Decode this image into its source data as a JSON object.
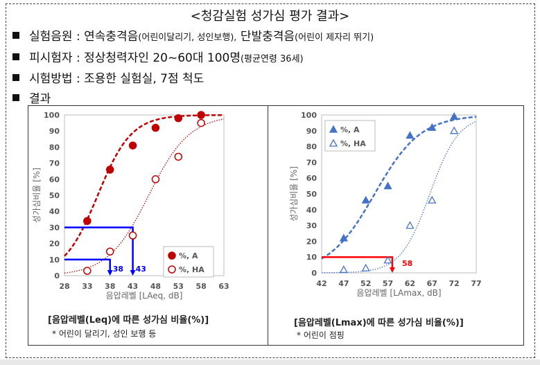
{
  "title": "<청감실험 성가심 평가 결과>",
  "lines": [
    {
      "main": "실험음원 : 연속충격음",
      "small": "(어린이달리기, 성인보행),",
      "main2": " 단발충격음",
      "small2": "(어린이 제자리 뛰기)"
    },
    {
      "main": "피시험자 : 정상청력자인 20~60대 100명",
      "small": "(평균연령 36세)"
    },
    {
      "main": "시험방법 : 조용한 실험실, 7점 척도"
    },
    {
      "main": "결과"
    }
  ],
  "chart_data": [
    {
      "type": "scatter",
      "xlabel": "음압레벨 [LAeq, dB]",
      "ylabel": "성가심비율 [%]",
      "xlim": [
        28,
        63
      ],
      "ylim": [
        0,
        100
      ],
      "xticks": [
        "28",
        "33",
        "38",
        "43",
        "48",
        "53",
        "58",
        "63"
      ],
      "yticks": [
        "0",
        "10",
        "20",
        "30",
        "40",
        "50",
        "60",
        "70",
        "80",
        "90",
        "100"
      ],
      "legend": "bottom-right",
      "color": "#c00000",
      "series": [
        {
          "name": "%, A",
          "marker": "filled-circle",
          "x": [
            33,
            38,
            43,
            48,
            53,
            58
          ],
          "y": [
            34,
            66,
            81,
            92,
            98,
            100
          ],
          "fit": {
            "x0": 35.3,
            "s": 3.7
          }
        },
        {
          "name": "%, HA",
          "marker": "open-circle",
          "x": [
            33,
            38,
            43,
            48,
            53,
            58
          ],
          "y": [
            3,
            15,
            25,
            60,
            74,
            95
          ],
          "fit": {
            "x0": 46.5,
            "s": 4.5
          }
        }
      ],
      "annotations": [
        {
          "y": 10,
          "x": 38,
          "label": "38",
          "color": "#0000ff"
        },
        {
          "y": 30,
          "x": 43,
          "label": "43",
          "color": "#0000ff"
        }
      ],
      "caption": "[음압레벨(Leq)에 따른 성가심 비율(%)]",
      "note": "* 어린이 달리기, 성인 보행 등"
    },
    {
      "type": "scatter",
      "xlabel": "음압레벨 [LAmax, dB]",
      "ylabel": "성가심비율 [%]",
      "xlim": [
        42,
        77
      ],
      "ylim": [
        0,
        100
      ],
      "xticks": [
        "42",
        "47",
        "52",
        "57",
        "62",
        "67",
        "72",
        "77"
      ],
      "yticks": [
        "0",
        "10",
        "20",
        "30",
        "40",
        "50",
        "60",
        "70",
        "80",
        "90",
        "100"
      ],
      "legend": "top-left",
      "color": "#4472c4",
      "series": [
        {
          "name": "%, A",
          "marker": "filled-triangle",
          "x": [
            47,
            52,
            57,
            62,
            67,
            72
          ],
          "y": [
            22,
            46,
            55,
            87,
            92,
            99
          ],
          "fit": {
            "x0": 54,
            "s": 5.2
          }
        },
        {
          "name": "%, HA",
          "marker": "open-triangle",
          "x": [
            47,
            52,
            57,
            62,
            67,
            72
          ],
          "y": [
            2,
            3,
            8,
            30,
            46,
            90
          ],
          "fit": {
            "x0": 66.5,
            "s": 3.3
          }
        }
      ],
      "annotations": [
        {
          "y": 10,
          "x": 58,
          "label": "58",
          "color": "#ff0000"
        }
      ],
      "caption": "[음압레벨(Lmax)에 따른 성가심 비율(%)]",
      "note": "* 어린이 점핑"
    }
  ]
}
